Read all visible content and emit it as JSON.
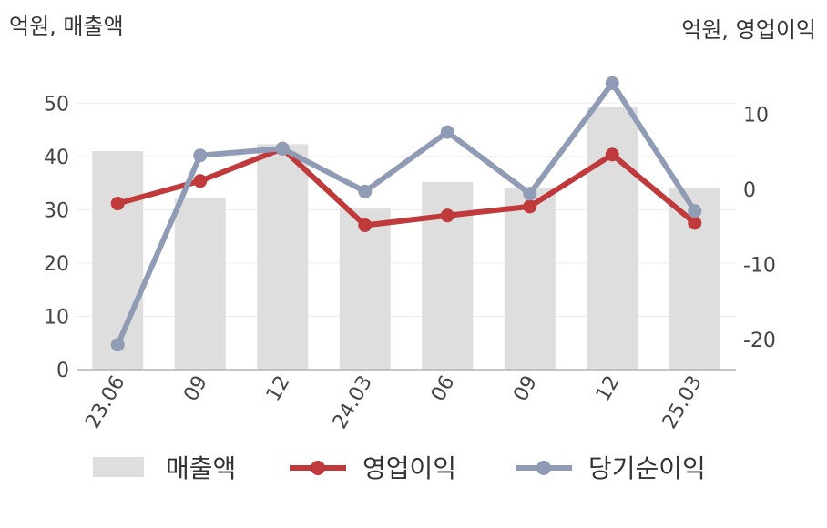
{
  "chart_data": {
    "type": "bar",
    "categories": [
      "23.06",
      "09",
      "12",
      "24.03",
      "06",
      "09",
      "12",
      "25.03"
    ],
    "left_axis_unit": "억원, 매출액",
    "right_axis_unit": "억원, 영업이익",
    "left_ticks": [
      "0",
      "10",
      "20",
      "30",
      "40",
      "50"
    ],
    "right_ticks": [
      "10",
      "0",
      "-10",
      "-20"
    ],
    "ylim_left": [
      0,
      55
    ],
    "ylim_right": [
      -24,
      15
    ],
    "grid": true,
    "legend_position": "bottom",
    "series": [
      {
        "name": "매출액",
        "type": "bar",
        "axis": "left",
        "color": "#dedede",
        "values": [
          41,
          32.3,
          42.3,
          30.2,
          35.2,
          34,
          49.3,
          34.2
        ]
      },
      {
        "name": "영업이익",
        "type": "line",
        "axis": "right",
        "color": "#c0393b",
        "values": [
          -1.9,
          1.1,
          5.4,
          -4.8,
          -3.5,
          -2.3,
          4.6,
          -4.5
        ]
      },
      {
        "name": "당기순이익",
        "type": "line",
        "axis": "right",
        "color": "#909cb6",
        "values": [
          -20.7,
          4.5,
          5.4,
          -0.3,
          7.6,
          -0.6,
          14.1,
          -2.9
        ]
      }
    ]
  }
}
